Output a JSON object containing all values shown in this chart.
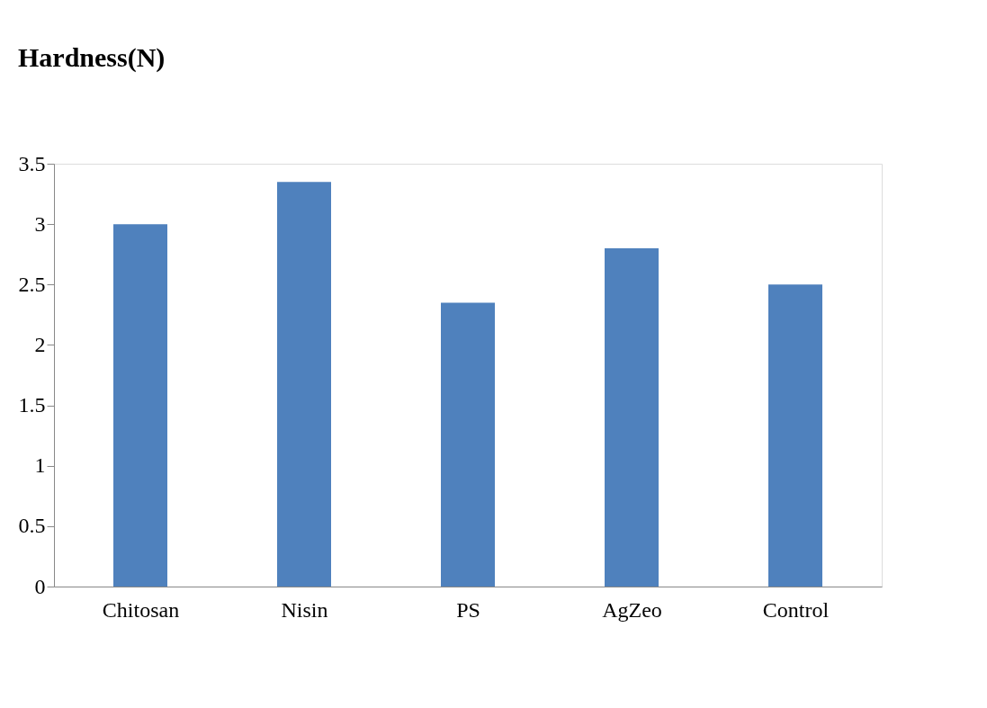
{
  "chart_data": {
    "type": "bar",
    "title": "Hardness(N)",
    "categories": [
      "Chitosan",
      "Nisin",
      "PS",
      "AgZeo",
      "Control"
    ],
    "values": [
      3.0,
      3.35,
      2.35,
      2.8,
      2.5
    ],
    "color": "#4f81bd",
    "ylim": [
      0,
      3.5
    ],
    "yticks": [
      0,
      0.5,
      1,
      1.5,
      2,
      2.5,
      3,
      3.5
    ],
    "grid": false
  }
}
